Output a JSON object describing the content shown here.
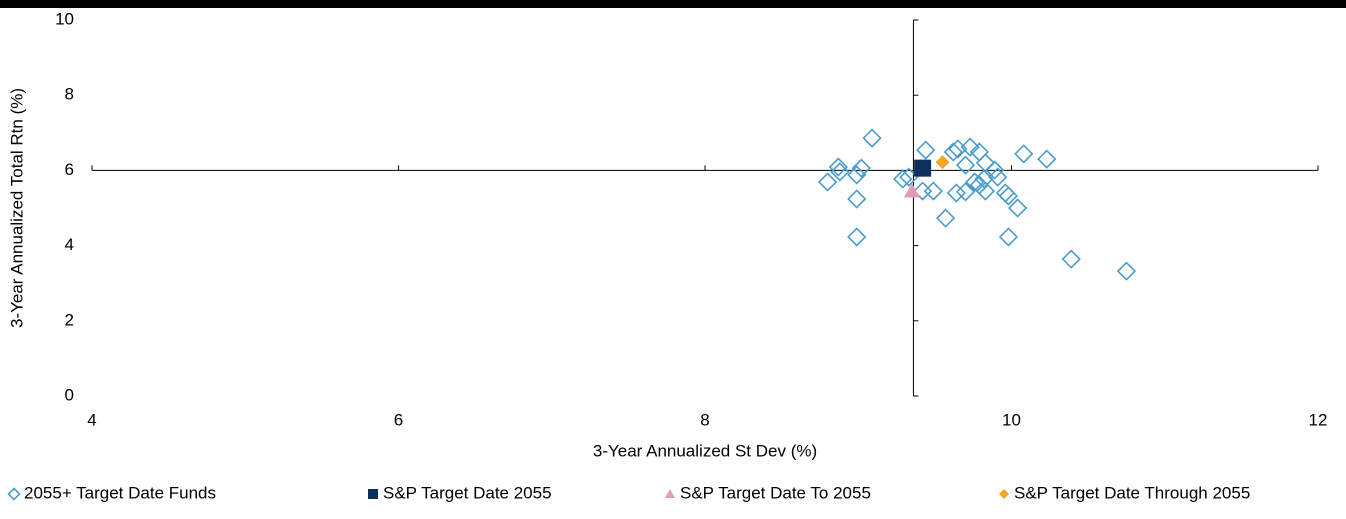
{
  "chart_data": {
    "type": "scatter",
    "xlabel": "3-Year Annualized St Dev (%)",
    "ylabel": "3-Year Annualized Total Rtn (%)",
    "xlim": [
      4,
      12
    ],
    "xticks": [
      4,
      6,
      8,
      10,
      12
    ],
    "ylim": [
      0,
      10
    ],
    "yticks": [
      0,
      2,
      4,
      6,
      8,
      10
    ],
    "x_axis_crosses_at": 6,
    "y_axis_crosses_at": 9.36,
    "grid": false,
    "legend": "bottom",
    "series": [
      {
        "name": "2055+ Target Date Funds",
        "color": "#4a9ccc",
        "marker": "diamond-open",
        "x": [
          8.8,
          8.87,
          8.88,
          8.99,
          8.99,
          9.02,
          8.99,
          9.09,
          9.29,
          9.33,
          9.42,
          9.44,
          9.49,
          9.57,
          9.62,
          9.65,
          9.64,
          9.7,
          9.7,
          9.73,
          9.76,
          9.79,
          9.79,
          9.82,
          9.83,
          9.83,
          9.89,
          9.91,
          9.96,
          9.98,
          9.98,
          10.04,
          10.08,
          10.23,
          10.39,
          10.75
        ],
        "values": [
          5.69,
          6.09,
          5.96,
          5.24,
          5.88,
          6.06,
          4.23,
          6.86,
          5.77,
          5.82,
          5.45,
          6.54,
          5.45,
          4.73,
          6.49,
          6.57,
          5.4,
          6.14,
          5.43,
          6.62,
          5.69,
          6.49,
          5.61,
          5.77,
          6.2,
          5.45,
          6.01,
          5.82,
          5.4,
          5.32,
          4.23,
          5.0,
          6.44,
          6.3,
          3.64,
          3.32
        ]
      },
      {
        "name": "S&P Target Date 2055",
        "color": "#0d2f5e",
        "marker": "square",
        "x": [
          9.42
        ],
        "values": [
          6.06
        ]
      },
      {
        "name": "S&P Target Date To 2055",
        "color": "#e39cb3",
        "marker": "triangle",
        "x": [
          9.35
        ],
        "values": [
          5.45
        ]
      },
      {
        "name": "S&P Target Date Through 2055",
        "color": "#f7a623",
        "marker": "diamond",
        "x": [
          9.55
        ],
        "values": [
          6.22
        ]
      }
    ]
  }
}
